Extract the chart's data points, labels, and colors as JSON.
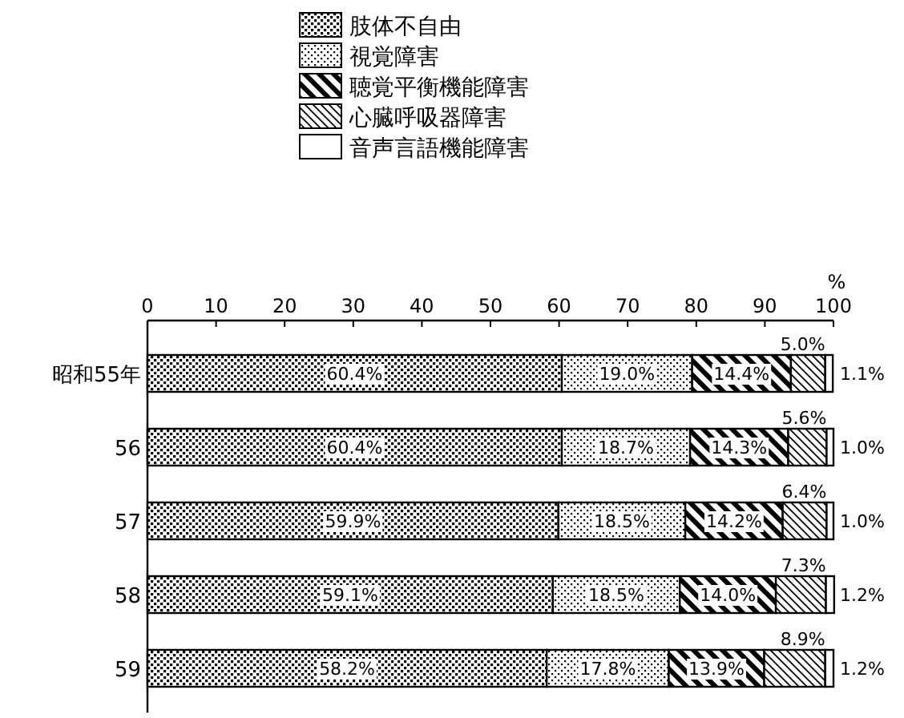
{
  "chart_data": {
    "type": "bar",
    "orientation": "horizontal",
    "stacked": true,
    "legend": "top",
    "grid": false,
    "xlabel": "%",
    "categories": [
      "昭和55年",
      "56",
      "57",
      "58",
      "59"
    ],
    "series": [
      {
        "name": "肢体不自由",
        "color": "#000000",
        "values": [
          60.4,
          60.4,
          59.9,
          59.1,
          58.2
        ],
        "value_labels": [
          "60.4%",
          "60.4%",
          "59.9%",
          "59.1%",
          "58.2%"
        ]
      },
      {
        "name": "視覚障害",
        "color": "#000000",
        "values": [
          19.0,
          18.7,
          18.5,
          18.5,
          17.8
        ],
        "value_labels": [
          "19.0%",
          "18.7%",
          "18.5%",
          "18.5%",
          "17.8%"
        ]
      },
      {
        "name": "聴覚平衡機能障害",
        "color": "#000000",
        "values": [
          14.4,
          14.3,
          14.2,
          14.0,
          13.9
        ],
        "value_labels": [
          "14.4%",
          "14.3%",
          "14.2%",
          "14.0%",
          "13.9%"
        ]
      },
      {
        "name": "心臓呼吸器障害",
        "color": "#000000",
        "values": [
          5.0,
          5.6,
          6.4,
          7.3,
          8.9
        ],
        "value_labels": [
          "5.0%",
          "5.6%",
          "6.4%",
          "7.3%",
          "8.9%"
        ]
      },
      {
        "name": "音声言語機能障害",
        "color": "#ffffff",
        "values": [
          1.1,
          1.0,
          1.0,
          1.2,
          1.2
        ],
        "value_labels": [
          "1.1%",
          "1.0%",
          "1.0%",
          "1.2%",
          "1.2%"
        ]
      }
    ],
    "xlim": [
      0,
      100
    ],
    "xticks": [
      0,
      10,
      20,
      30,
      40,
      50,
      60,
      70,
      80,
      90,
      100
    ]
  }
}
